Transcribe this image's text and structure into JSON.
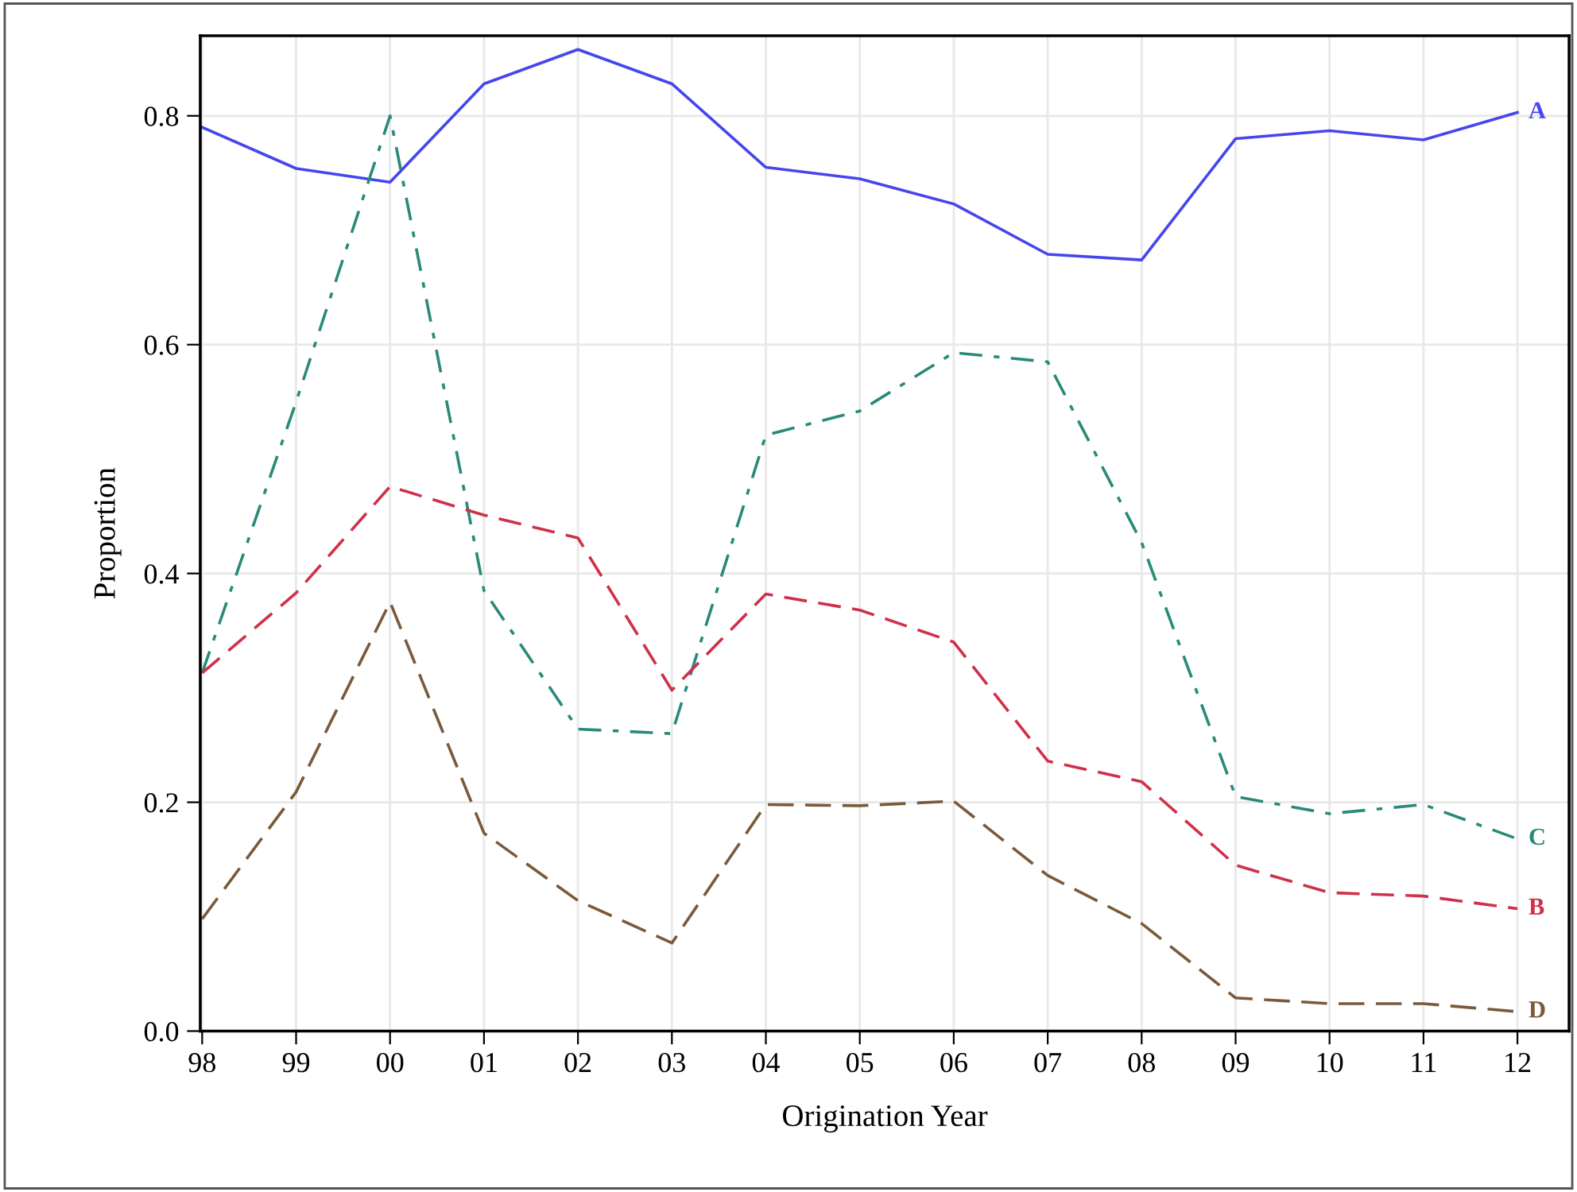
{
  "chart_data": {
    "type": "line",
    "xlabel": "Origination Year",
    "ylabel": "Proportion",
    "categories": [
      "98",
      "99",
      "00",
      "01",
      "02",
      "03",
      "04",
      "05",
      "06",
      "07",
      "08",
      "09",
      "10",
      "11",
      "12"
    ],
    "ylim": [
      0,
      0.87
    ],
    "yticks": [
      {
        "value": 0,
        "label": "0.0"
      },
      {
        "value": 0.2,
        "label": "0.2"
      },
      {
        "value": 0.4,
        "label": "0.4"
      },
      {
        "value": 0.6,
        "label": "0.6"
      },
      {
        "value": 0.8,
        "label": "0.8"
      }
    ],
    "grid": true,
    "legend": false,
    "series": [
      {
        "name": "A",
        "color": "#4646ee",
        "line_style": "solid",
        "values": [
          0.79,
          0.754,
          0.742,
          0.828,
          0.858,
          0.828,
          0.755,
          0.745,
          0.723,
          0.679,
          0.674,
          0.78,
          0.787,
          0.779,
          0.803
        ]
      },
      {
        "name": "C",
        "color": "#2a8a7a",
        "line_style": "dashdot",
        "values": [
          0.313,
          0.55,
          0.8,
          0.385,
          0.264,
          0.26,
          0.521,
          0.542,
          0.593,
          0.585,
          0.427,
          0.205,
          0.19,
          0.198,
          0.168
        ]
      },
      {
        "name": "B",
        "color": "#d0304a",
        "line_style": "dashed",
        "values": [
          0.313,
          0.383,
          0.476,
          0.451,
          0.431,
          0.298,
          0.382,
          0.368,
          0.34,
          0.236,
          0.218,
          0.145,
          0.121,
          0.118,
          0.107
        ]
      },
      {
        "name": "D",
        "color": "#7a5a3a",
        "line_style": "longdash",
        "values": [
          0.098,
          0.209,
          0.375,
          0.173,
          0.114,
          0.077,
          0.198,
          0.197,
          0.201,
          0.136,
          0.094,
          0.029,
          0.024,
          0.024,
          0.017
        ]
      }
    ]
  }
}
